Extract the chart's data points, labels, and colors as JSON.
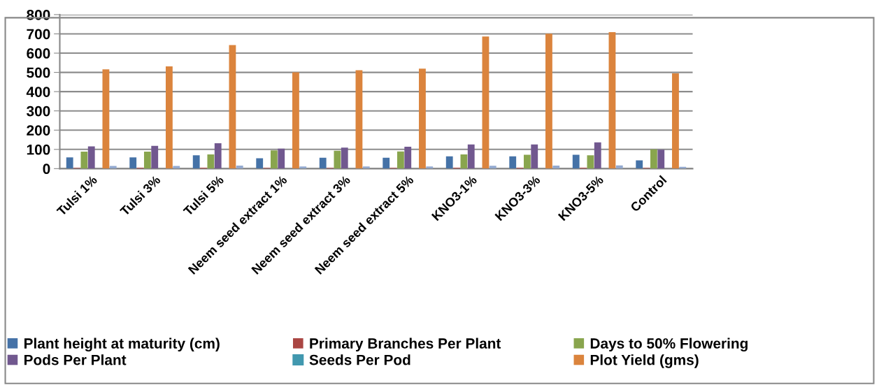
{
  "chart_data": {
    "type": "bar",
    "categories": [
      "Tulsi 1%",
      "Tulsi 3%",
      "Tulsi 5%",
      "Neem seed extract 1%",
      "Neem seed extract 3%",
      "Neem seed extract 5%",
      "KNO3-1%",
      "KNO3-3%",
      "KNO3-5%",
      "Control"
    ],
    "series": [
      {
        "name": "Plant height at maturity (cm)",
        "color": "#4572a7",
        "values": [
          58,
          58,
          69,
          54,
          57,
          57,
          64,
          64,
          72,
          43
        ]
      },
      {
        "name": "Primary Branches Per Plant",
        "color": "#aa4643",
        "values": [
          4,
          5,
          5,
          4,
          4,
          4,
          5,
          5,
          5,
          4
        ]
      },
      {
        "name": "Days to 50% Flowering",
        "color": "#89a54e",
        "values": [
          88,
          88,
          74,
          95,
          93,
          89,
          74,
          72,
          69,
          100
        ]
      },
      {
        "name": "Pods Per Plant",
        "color": "#71588f",
        "values": [
          116,
          118,
          132,
          104,
          109,
          114,
          126,
          126,
          136,
          98
        ]
      },
      {
        "name": "Seeds Per Pod",
        "color": "#4198af",
        "values": [
          null,
          null,
          null,
          null,
          null,
          null,
          null,
          null,
          null,
          null
        ]
      },
      {
        "name": "Plot Yield (gms)",
        "color": "#db843d",
        "values": [
          516,
          531,
          642,
          500,
          511,
          519,
          686,
          701,
          709,
          495
        ]
      },
      {
        "color": "#93a9cf",
        "values": [
          14,
          14,
          16,
          11,
          11,
          11,
          15,
          16,
          17,
          9
        ]
      }
    ],
    "ylim": [
      0,
      800
    ],
    "yticks": [
      0,
      100,
      200,
      300,
      400,
      500,
      600,
      700,
      800
    ],
    "grid": "y",
    "legend": "bottom"
  }
}
